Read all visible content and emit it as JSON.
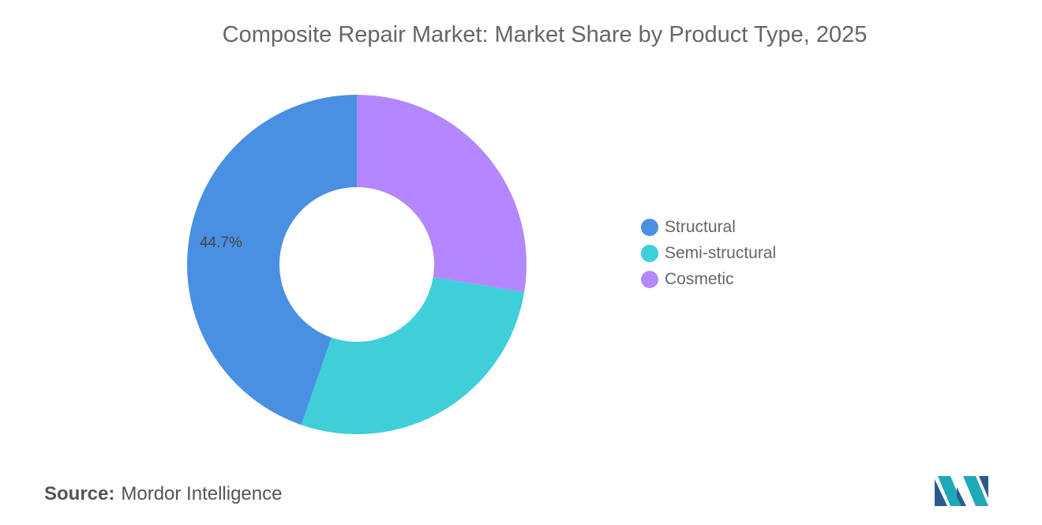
{
  "chart_data": {
    "type": "pie",
    "variant": "donut",
    "title": "Composite Repair Market: Market Share by Product Type, 2025",
    "categories": [
      "Structural",
      "Semi-structural",
      "Cosmetic"
    ],
    "values": [
      44.7,
      27.7,
      27.6
    ],
    "unit": "%",
    "data_labels": [
      "44.7%",
      "",
      ""
    ],
    "colors": [
      "#4a90e2",
      "#3ecfd9",
      "#b388ff"
    ],
    "legend_position": "right"
  },
  "source": {
    "label": "Source:",
    "text": "Mordor Intelligence"
  },
  "logo": {
    "name": "mordor-intelligence-logo",
    "colors": [
      "#1fa8b8",
      "#2a5a8c"
    ]
  }
}
